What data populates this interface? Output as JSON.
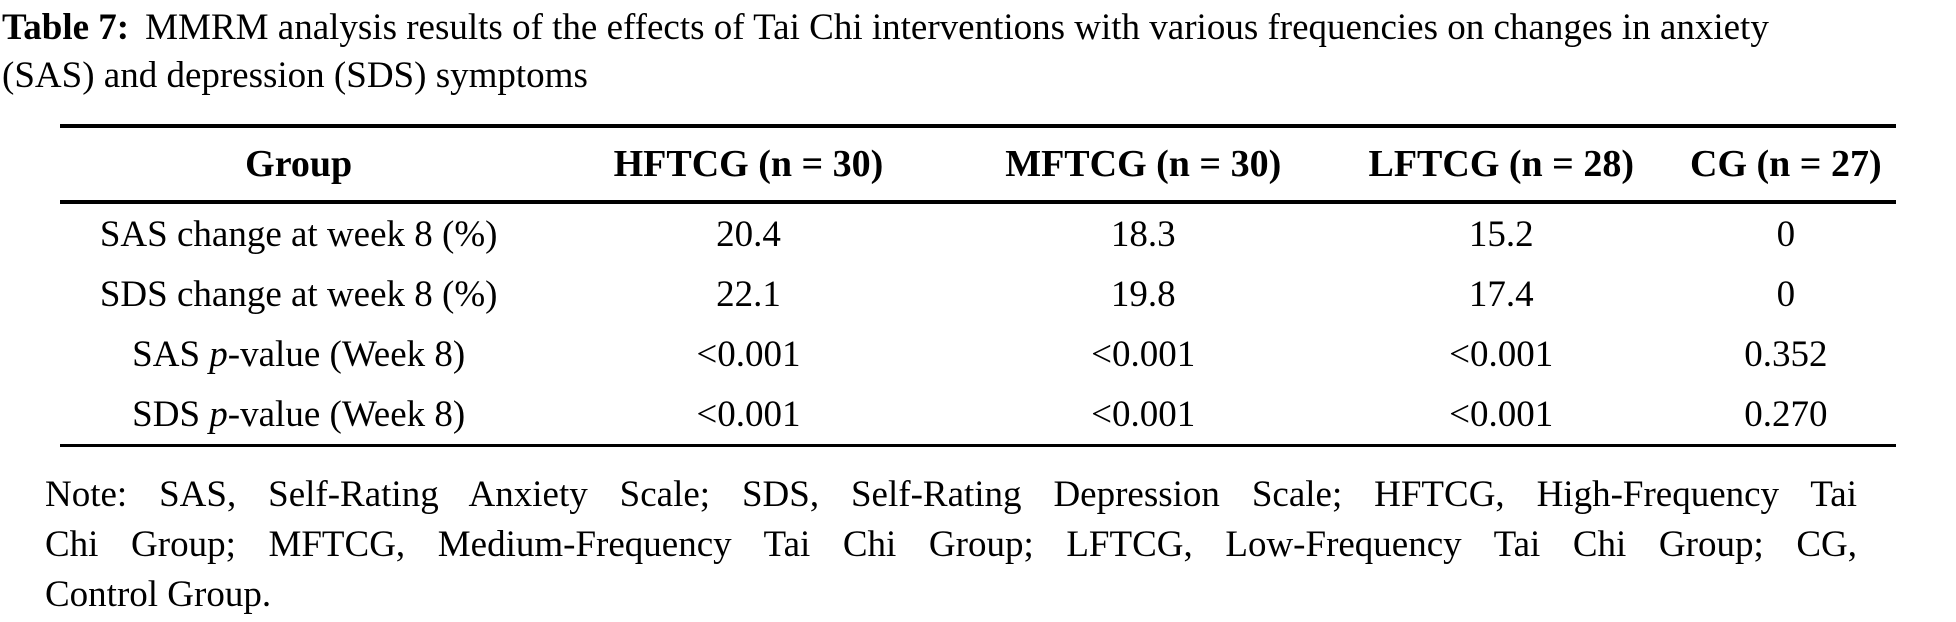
{
  "caption": {
    "label": "Table 7:",
    "line1": "MMRM analysis results of the effects of Tai Chi interventions with various frequencies on changes in anxiety",
    "line2": "(SAS) and depression (SDS) symptoms"
  },
  "table": {
    "columns": [
      "Group",
      "HFTCG (n = 30)",
      "MFTCG (n = 30)",
      "LFTCG (n = 28)",
      "CG (n = 27)"
    ],
    "rows": [
      {
        "label": {
          "pre": "SAS change at week 8 (%)",
          "italic": "",
          "post": ""
        },
        "values": [
          "20.4",
          "18.3",
          "15.2",
          "0"
        ]
      },
      {
        "label": {
          "pre": "SDS change at week 8 (%)",
          "italic": "",
          "post": ""
        },
        "values": [
          "22.1",
          "19.8",
          "17.4",
          "0"
        ]
      },
      {
        "label": {
          "pre": "SAS ",
          "italic": "p",
          "post": "-value (Week 8)"
        },
        "values": [
          "<0.001",
          "<0.001",
          "<0.001",
          "0.352"
        ]
      },
      {
        "label": {
          "pre": "SDS ",
          "italic": "p",
          "post": "-value (Week 8)"
        },
        "values": [
          "<0.001",
          "<0.001",
          "<0.001",
          "0.270"
        ]
      }
    ]
  },
  "note": {
    "lines": [
      "Note: SAS, Self-Rating Anxiety Scale; SDS, Self-Rating Depression Scale; HFTCG, High-Frequency Tai",
      "Chi Group; MFTCG, Medium-Frequency Tai Chi Group; LFTCG, Low-Frequency Tai Chi Group; CG,",
      "Control Group."
    ]
  },
  "colors": {
    "text": "#000000",
    "background": "#ffffff",
    "rule": "#000000"
  }
}
